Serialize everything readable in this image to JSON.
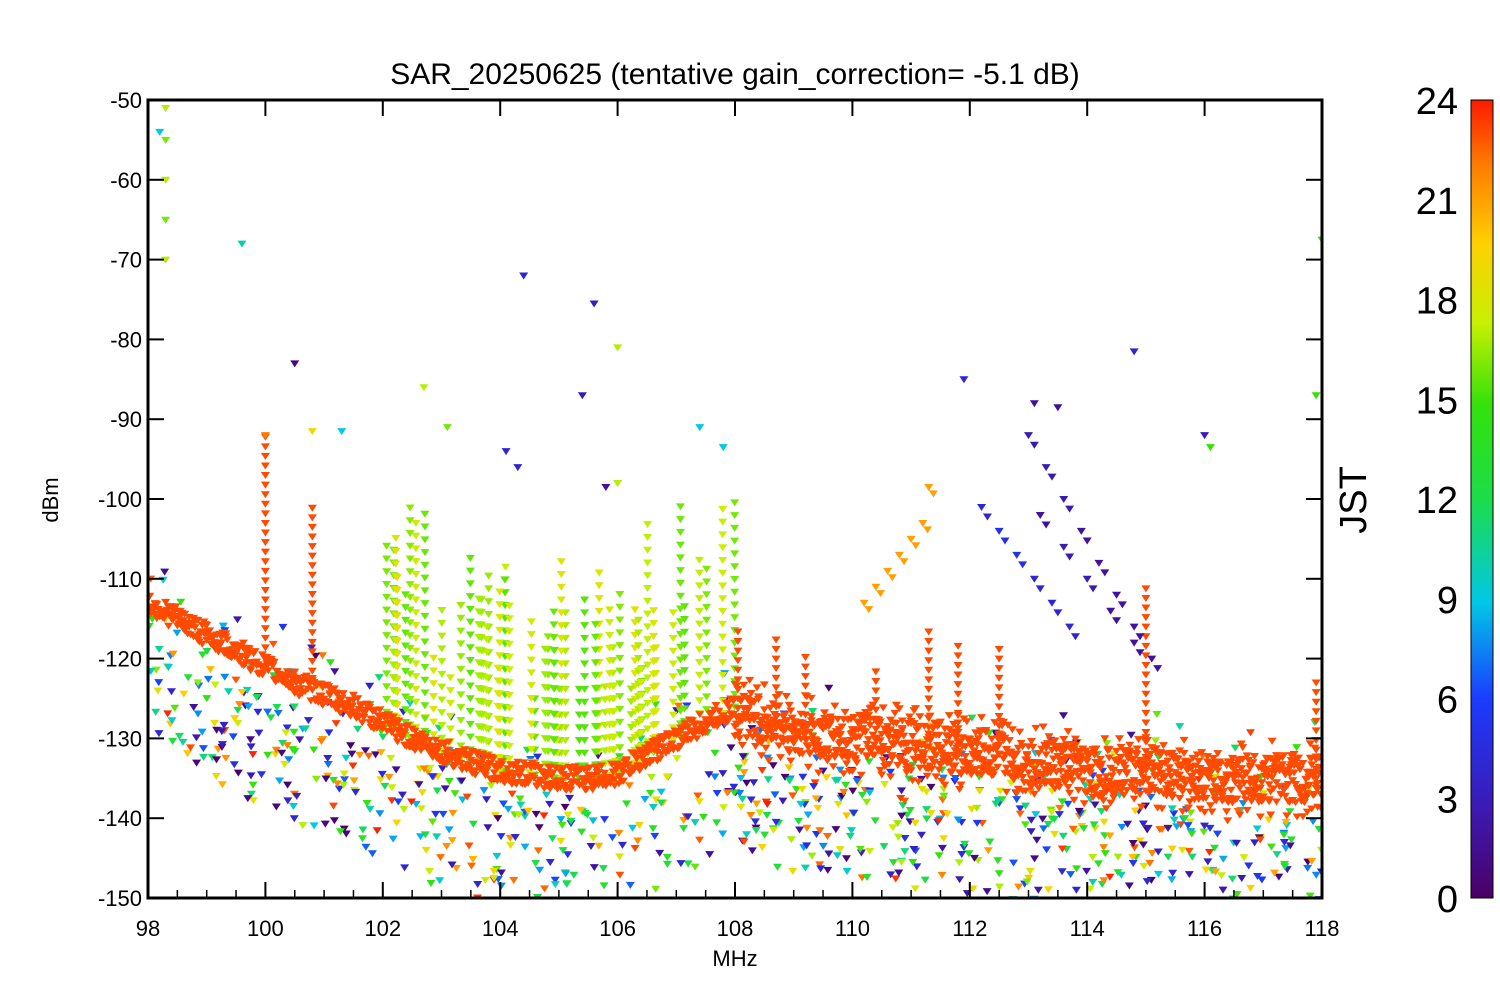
{
  "chart_data": {
    "type": "scatter",
    "title": "SAR_20250625 (tentative gain_correction= -5.1 dB)",
    "xlabel": "MHz",
    "ylabel": "dBm",
    "xlim": [
      98,
      118
    ],
    "ylim": [
      -150,
      -50
    ],
    "x_ticks": [
      "98",
      "100",
      "102",
      "104",
      "106",
      "108",
      "110",
      "112",
      "114",
      "116",
      "118"
    ],
    "y_ticks": [
      "-50",
      "-60",
      "-70",
      "-80",
      "-90",
      "-100",
      "-110",
      "-120",
      "-130",
      "-140",
      "-150"
    ],
    "colorbar": {
      "label": "JST",
      "range": [
        0,
        24
      ],
      "ticks": [
        "0",
        "3",
        "6",
        "9",
        "12",
        "15",
        "18",
        "21",
        "24"
      ],
      "colormap": "rainbow (purple-blue-cyan-green-yellow-orange-red)"
    },
    "grid": false,
    "series": [
      {
        "description_key": "noise_floor_points",
        "color_value_jst": 23,
        "points": [
          [
            98.0,
            -113
          ],
          [
            98.5,
            -115
          ],
          [
            99.0,
            -117
          ],
          [
            99.5,
            -119
          ],
          [
            100.0,
            -121
          ],
          [
            100.5,
            -123
          ],
          [
            101.0,
            -124.5
          ],
          [
            101.5,
            -126
          ],
          [
            102.0,
            -128
          ],
          [
            102.5,
            -130
          ],
          [
            103.0,
            -131.5
          ],
          [
            103.5,
            -133
          ],
          [
            104.0,
            -134
          ],
          [
            104.5,
            -134.5
          ],
          [
            105.0,
            -135
          ],
          [
            105.5,
            -135
          ],
          [
            106.0,
            -134.5
          ],
          [
            106.5,
            -132
          ],
          [
            107.0,
            -130
          ],
          [
            107.5,
            -128
          ],
          [
            108.0,
            -126
          ],
          [
            108.5,
            -128
          ],
          [
            109.0,
            -129
          ],
          [
            109.5,
            -130
          ],
          [
            110.0,
            -130
          ],
          [
            110.5,
            -130
          ],
          [
            111.0,
            -131
          ],
          [
            111.5,
            -131
          ],
          [
            112.0,
            -132
          ],
          [
            112.5,
            -132
          ],
          [
            113.0,
            -133
          ],
          [
            113.5,
            -133.5
          ],
          [
            114.0,
            -134
          ],
          [
            114.5,
            -134
          ],
          [
            115.0,
            -134
          ],
          [
            115.5,
            -134.5
          ],
          [
            116.0,
            -135
          ],
          [
            116.5,
            -135
          ],
          [
            117.0,
            -135
          ],
          [
            117.5,
            -135
          ],
          [
            118.0,
            -135
          ]
        ]
      },
      {
        "description_key": "strong_signals",
        "points": [
          [
            98.3,
            -51,
            17
          ],
          [
            98.3,
            -55,
            16
          ],
          [
            98.3,
            -60,
            17
          ],
          [
            98.3,
            -65,
            16
          ],
          [
            98.3,
            -70,
            17
          ],
          [
            98.2,
            -54,
            9
          ],
          [
            99.6,
            -68,
            10
          ],
          [
            104.4,
            -72,
            4
          ],
          [
            105.6,
            -75.5,
            3
          ],
          [
            106.0,
            -81,
            17
          ],
          [
            100.5,
            -83,
            1
          ],
          [
            105.4,
            -87,
            3
          ],
          [
            102.7,
            -86,
            17
          ],
          [
            103.1,
            -91,
            16
          ],
          [
            100.0,
            -92,
            22
          ],
          [
            100.8,
            -91.5,
            19
          ],
          [
            114.8,
            -81.5,
            4
          ],
          [
            118.0,
            -67.5,
            15
          ],
          [
            117.9,
            -87,
            15
          ],
          [
            111.9,
            -85,
            4
          ],
          [
            113.1,
            -88,
            2
          ],
          [
            113.5,
            -88.5,
            2
          ],
          [
            116.0,
            -92,
            3
          ],
          [
            116.1,
            -93.5,
            15
          ],
          [
            107.4,
            -91,
            9
          ],
          [
            107.8,
            -93.5,
            9
          ],
          [
            104.1,
            -94,
            4
          ],
          [
            104.3,
            -96,
            4
          ],
          [
            105.8,
            -98.5,
            2
          ],
          [
            106.0,
            -98,
            17
          ],
          [
            101.3,
            -91.5,
            9
          ]
        ]
      },
      {
        "description_key": "orange_arc_signals",
        "color_value_jst": 21,
        "points": [
          [
            110.2,
            -113
          ],
          [
            110.4,
            -111
          ],
          [
            110.6,
            -109
          ],
          [
            110.8,
            -107
          ],
          [
            111.0,
            -105
          ],
          [
            111.2,
            -103
          ],
          [
            111.3,
            -98.5
          ]
        ]
      },
      {
        "description_key": "purple_blue_diagonal_tracks",
        "points": [
          [
            112.2,
            -101,
            4
          ],
          [
            112.5,
            -104,
            5
          ],
          [
            112.8,
            -107,
            5
          ],
          [
            113.1,
            -110,
            4
          ],
          [
            113.4,
            -113,
            4
          ],
          [
            113.7,
            -116,
            4
          ],
          [
            113.0,
            -92,
            3
          ],
          [
            113.3,
            -96,
            3
          ],
          [
            113.6,
            -100,
            3
          ],
          [
            113.9,
            -104,
            2
          ],
          [
            114.2,
            -108,
            2
          ],
          [
            114.5,
            -112,
            2
          ],
          [
            114.8,
            -116,
            2
          ],
          [
            115.1,
            -120,
            2
          ],
          [
            113.2,
            -102,
            2
          ],
          [
            113.6,
            -106,
            3
          ],
          [
            114.0,
            -110,
            3
          ],
          [
            114.4,
            -114,
            2
          ],
          [
            114.8,
            -118,
            2
          ]
        ]
      }
    ]
  }
}
